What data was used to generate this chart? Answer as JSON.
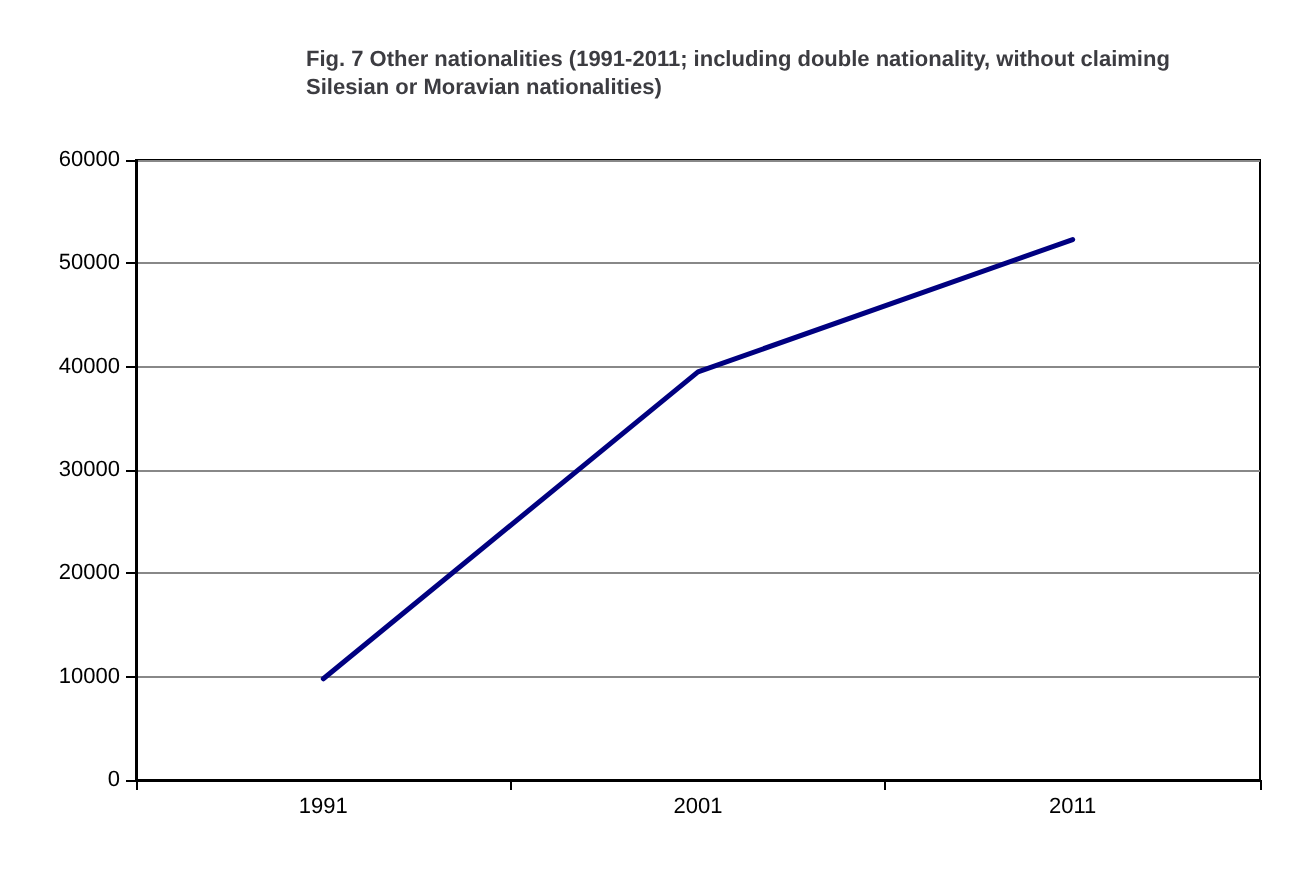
{
  "chart_data": {
    "type": "line",
    "title": "Fig. 7 Other nationalities (1991-2011; including double nationality, without claiming Silesian or Moravian nationalities)",
    "categories": [
      "1991",
      "2001",
      "2011"
    ],
    "series": [
      {
        "color": "#000080",
        "values": [
          9800,
          39500,
          52300
        ]
      }
    ],
    "ylim": [
      0,
      60000
    ],
    "yticks": [
      0,
      10000,
      20000,
      30000,
      40000,
      50000,
      60000
    ],
    "grid": "y",
    "marker": "none",
    "line_style": "solid"
  }
}
